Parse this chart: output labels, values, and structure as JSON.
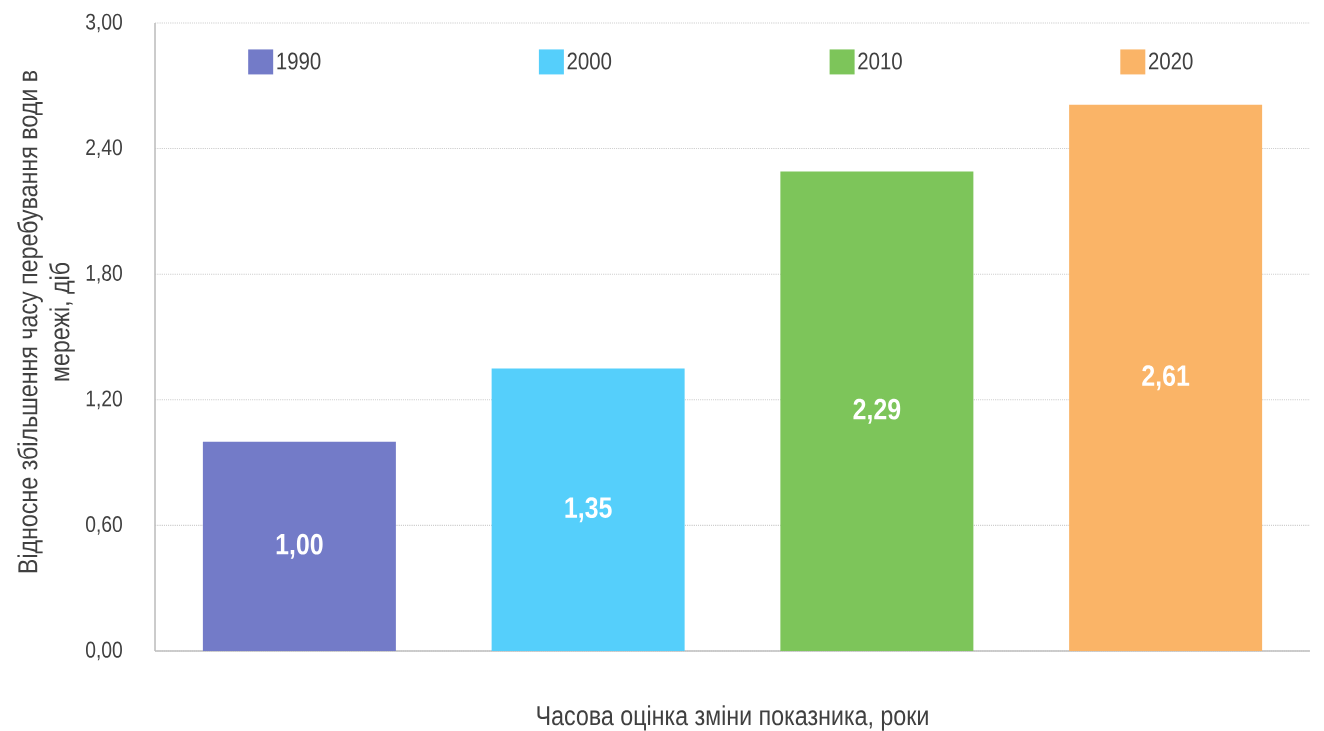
{
  "chart_data": {
    "type": "bar",
    "xlabel": "Часова оцінка зміни показника, роки",
    "ylabel": "Відносне збільшення часу перебування води в мережі, діб",
    "categories": [
      null,
      null,
      null,
      null
    ],
    "series": [
      {
        "name": "1990",
        "color": "#737bc8",
        "values": [
          1.0,
          null,
          null,
          null
        ],
        "value_labels": [
          "1,00",
          null,
          null,
          null
        ]
      },
      {
        "name": "2000",
        "color": "#55cffb",
        "values": [
          null,
          1.35,
          null,
          null
        ],
        "value_labels": [
          null,
          "1,35",
          null,
          null
        ]
      },
      {
        "name": "2010",
        "color": "#7dc55a",
        "values": [
          null,
          null,
          2.29,
          null
        ],
        "value_labels": [
          null,
          null,
          "2,29",
          null
        ]
      },
      {
        "name": "2020",
        "color": "#fab467",
        "values": [
          null,
          null,
          null,
          2.61
        ],
        "value_labels": [
          null,
          null,
          null,
          "2,61"
        ]
      }
    ],
    "ylim": [
      0,
      3
    ],
    "yticks": [
      {
        "value": 0,
        "label": "0,00"
      },
      {
        "value": 0.6,
        "label": "0,60"
      },
      {
        "value": 1.2,
        "label": "1,20"
      },
      {
        "value": 1.8,
        "label": "1,80"
      },
      {
        "value": 2.4,
        "label": "2,40"
      },
      {
        "value": 3,
        "label": "3,00"
      }
    ],
    "grid": "y",
    "legend": "top"
  }
}
